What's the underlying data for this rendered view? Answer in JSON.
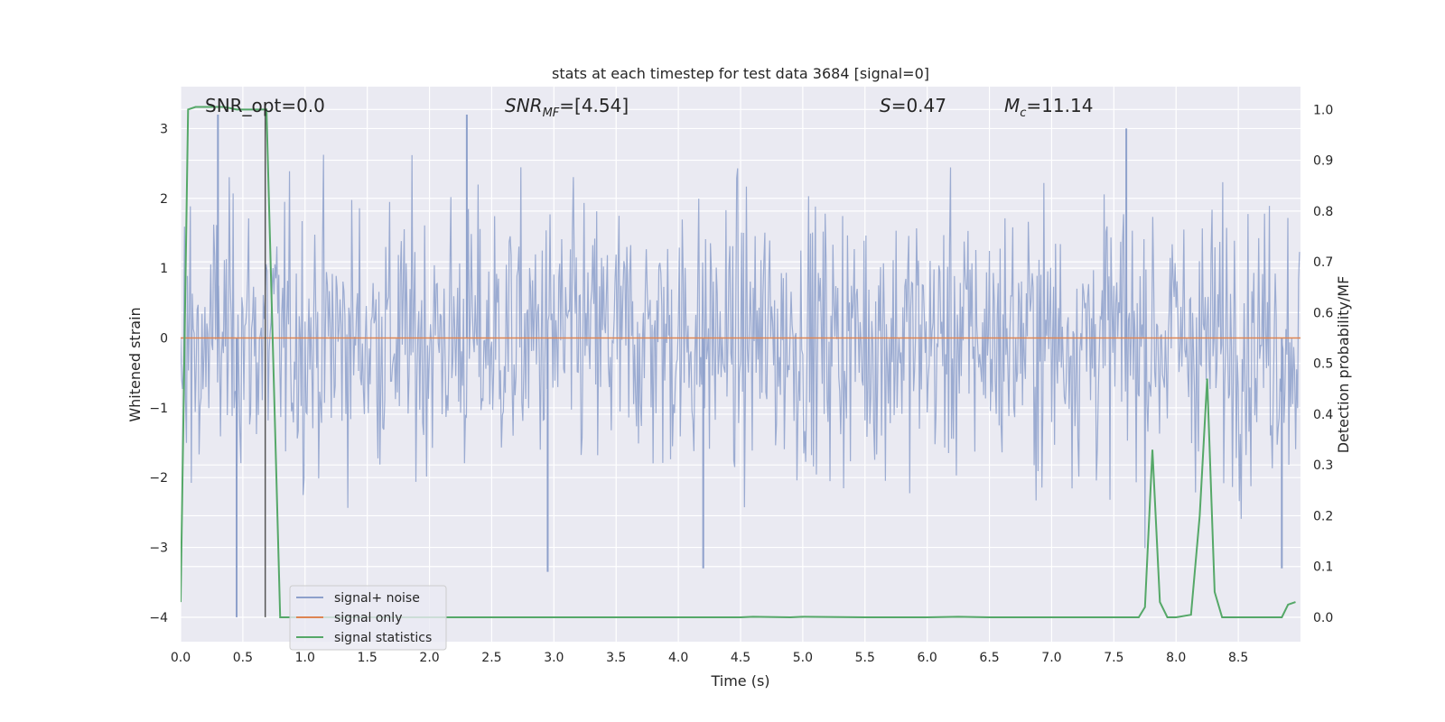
{
  "chart_data": {
    "type": "line",
    "title": "stats at each timestep for test data 3684 [signal=0]",
    "xlabel": "Time (s)",
    "ylabel": "Whitened strain",
    "y2label": "Detection probability/MF",
    "xlim": [
      0.0,
      9.0
    ],
    "ylim": [
      -4.35,
      3.6
    ],
    "y2lim": [
      -0.048,
      1.045
    ],
    "grid": true,
    "legend_position": "lower-left",
    "x_ticks": [
      "0.0",
      "0.5",
      "1.0",
      "1.5",
      "2.0",
      "2.5",
      "3.0",
      "3.5",
      "4.0",
      "4.5",
      "5.0",
      "5.5",
      "6.0",
      "6.5",
      "7.0",
      "7.5",
      "8.0",
      "8.5"
    ],
    "x_tick_values": [
      0.0,
      0.5,
      1.0,
      1.5,
      2.0,
      2.5,
      3.0,
      3.5,
      4.0,
      4.5,
      5.0,
      5.5,
      6.0,
      6.5,
      7.0,
      7.5,
      8.0,
      8.5
    ],
    "y_ticks": [
      "3",
      "2",
      "1",
      "0",
      "−1",
      "−2",
      "−3",
      "−4"
    ],
    "y_tick_values": [
      3,
      2,
      1,
      0,
      -1,
      -2,
      -3,
      -4
    ],
    "y2_ticks": [
      "1.0",
      "0.9",
      "0.8",
      "0.7",
      "0.6",
      "0.5",
      "0.4",
      "0.3",
      "0.2",
      "0.1",
      "0.0"
    ],
    "y2_tick_values": [
      1.0,
      0.9,
      0.8,
      0.7,
      0.6,
      0.5,
      0.4,
      0.3,
      0.2,
      0.1,
      0.0
    ],
    "annotations": {
      "snr_opt": "SNR_opt=0.0",
      "snr_mf_prefix": "SNR",
      "snr_mf_sub": "MF",
      "snr_mf_value": "=[4.54]",
      "s_prefix": "S",
      "s_value": "=0.47",
      "mc_prefix": "M",
      "mc_sub": "c",
      "mc_value": "=11.14"
    },
    "series": [
      {
        "name": "signal+ noise",
        "axis": "left",
        "color": "#8da0cb",
        "description_values": "dense noise, approx range -4.0 to 3.2",
        "sample_rate_hz": 256,
        "envelope_typical": 1.7,
        "extremes": [
          [
            0.3,
            3.2
          ],
          [
            0.45,
            -4.0
          ],
          [
            2.3,
            3.2
          ],
          [
            2.95,
            -3.35
          ],
          [
            4.2,
            -3.3
          ],
          [
            7.6,
            3.0
          ],
          [
            8.85,
            -3.3
          ]
        ]
      },
      {
        "name": "signal only",
        "axis": "left",
        "color": "#dd8452",
        "x": [
          0.0,
          9.0
        ],
        "y": [
          0.0,
          0.0
        ]
      },
      {
        "name": "signal statistics",
        "axis": "right",
        "color": "#55a868",
        "x": [
          0.0,
          0.06,
          0.12,
          0.18,
          0.25,
          0.35,
          0.45,
          0.55,
          0.62,
          0.68,
          0.69,
          0.8,
          0.9,
          1.5,
          2.5,
          3.5,
          4.5,
          4.6,
          4.9,
          5.0,
          5.5,
          6.0,
          6.25,
          6.5,
          7.0,
          7.5,
          7.7,
          7.75,
          7.81,
          7.87,
          7.93,
          8.0,
          8.12,
          8.19,
          8.25,
          8.31,
          8.37,
          8.5,
          8.85,
          8.9,
          8.96
        ],
        "y": [
          0.03,
          1.0,
          1.005,
          1.005,
          1.005,
          1.005,
          1.0,
          1.0,
          1.0,
          1.0,
          1.0,
          0.0,
          0.0,
          0.0,
          0.0,
          0.0,
          0.0,
          0.001,
          0.0,
          0.001,
          0.0,
          0.0,
          0.001,
          0.0,
          0.0,
          0.0,
          0.0,
          0.02,
          0.33,
          0.03,
          0.0,
          0.0,
          0.005,
          0.2,
          0.47,
          0.05,
          0.0,
          0.0,
          0.0,
          0.025,
          0.03
        ]
      }
    ],
    "marker_line": {
      "x": 0.68,
      "y_from": -4.0,
      "y_to": 3.2,
      "color": "#555555"
    }
  },
  "legend": [
    {
      "label": "signal+ noise",
      "color": "#8da0cb"
    },
    {
      "label": "signal only",
      "color": "#dd8452"
    },
    {
      "label": "signal statistics",
      "color": "#55a868"
    }
  ]
}
